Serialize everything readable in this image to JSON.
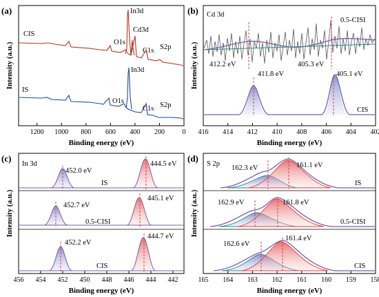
{
  "chart_data": [
    {
      "panel": "(a)",
      "type": "line",
      "xlabel": "Binding energy (eV)",
      "ylabel": "Intensity (a.u.)",
      "xlim": [
        1350,
        0
      ],
      "xticks": [
        1200,
        1000,
        800,
        600,
        400,
        200,
        0
      ],
      "series": [
        {
          "name": "CIS",
          "color": "#b5341f",
          "peaks": [
            {
              "label": "In3d",
              "x": 445
            },
            {
              "label": "Cd3d",
              "x": 405
            },
            {
              "label": "O1s",
              "x": 532
            },
            {
              "label": "C1s",
              "x": 285
            },
            {
              "label": "S2p",
              "x": 162
            }
          ]
        },
        {
          "name": "IS",
          "color": "#1f4a9a",
          "peaks": [
            {
              "label": "In3d",
              "x": 445
            },
            {
              "label": "O1s",
              "x": 532
            },
            {
              "label": "C1s",
              "x": 285
            },
            {
              "label": "S2p",
              "x": 162
            }
          ]
        }
      ]
    },
    {
      "panel": "(b)",
      "type": "line",
      "title": "Cd 3d",
      "xlabel": "Binding energy (eV)",
      "ylabel": "Intensity (a.u.)",
      "xlim": [
        416,
        402
      ],
      "xticks": [
        416,
        414,
        412,
        410,
        408,
        406,
        404,
        402
      ],
      "series": [
        {
          "name": "0.5-CISI",
          "peaks_eV": [
            412.2,
            405.3
          ]
        },
        {
          "name": "CIS",
          "peaks_eV": [
            411.8,
            405.1
          ]
        }
      ]
    },
    {
      "panel": "(c)",
      "type": "line",
      "title": "In 3d",
      "xlabel": "Binding energy (eV)",
      "ylabel": "Intensity (a.u.)",
      "xlim": [
        456,
        441
      ],
      "xticks": [
        456,
        454,
        452,
        450,
        448,
        446,
        444,
        442
      ],
      "series": [
        {
          "name": "IS",
          "peaks_eV": [
            452.0,
            444.5
          ]
        },
        {
          "name": "0.5-CISI",
          "peaks_eV": [
            452.7,
            445.1
          ]
        },
        {
          "name": "CIS",
          "peaks_eV": [
            452.2,
            444.7
          ]
        }
      ]
    },
    {
      "panel": "(d)",
      "type": "line",
      "title": "S 2p",
      "xlabel": "Binding energy (eV)",
      "ylabel": "Intensity (a.u.)",
      "xlim": [
        165,
        158
      ],
      "xticks": [
        165,
        164,
        163,
        162,
        161,
        160,
        159,
        158
      ],
      "series": [
        {
          "name": "IS",
          "peaks_eV": [
            162.3,
            161.1
          ]
        },
        {
          "name": "0.5-CISI",
          "peaks_eV": [
            162.9,
            161.8
          ]
        },
        {
          "name": "CIS",
          "peaks_eV": [
            162.6,
            161.4
          ]
        }
      ]
    }
  ],
  "panels": {
    "a": {
      "label": "(a)",
      "ylabel": "Intensity (a.u.)",
      "xlabel": "Binding energy (eV)",
      "cis": "CIS",
      "is": "IS",
      "cis_peaks": [
        "In3d",
        "Cd3d",
        "O1s",
        "C1s",
        "S2p"
      ],
      "is_peaks": [
        "In3d",
        "O1s",
        "C1s",
        "S2p"
      ]
    },
    "b": {
      "label": "(b)",
      "title": "Cd 3d",
      "ylabel": "Intensity (a.u.)",
      "xlabel": "Binding energy (eV)",
      "top": "0.5-CISI",
      "bottom": "CIS",
      "ann": [
        "412.2 eV",
        "405.3 eV",
        "411.8 eV",
        "405.1 eV"
      ]
    },
    "c": {
      "label": "(c)",
      "title": "In 3d",
      "ylabel": "Intensity (a.u.)",
      "xlabel": "Binding energy (eV)",
      "rows": [
        "IS",
        "0.5-CISI",
        "CIS"
      ],
      "ann": [
        "452.0 eV",
        "444.5 eV",
        "452.7 eV",
        "445.1 eV",
        "452.2 eV",
        "444.7 eV"
      ]
    },
    "d": {
      "label": "(d)",
      "title": "S 2p",
      "ylabel": "Intensity (a.u.)",
      "xlabel": "Binding energy (eV)",
      "rows": [
        "IS",
        "0.5-CISI",
        "CIS"
      ],
      "ann": [
        "162.3 eV",
        "161.1 eV",
        "162.9 eV",
        "161.8 eV",
        "162.6 eV",
        "161.4 eV"
      ]
    }
  }
}
